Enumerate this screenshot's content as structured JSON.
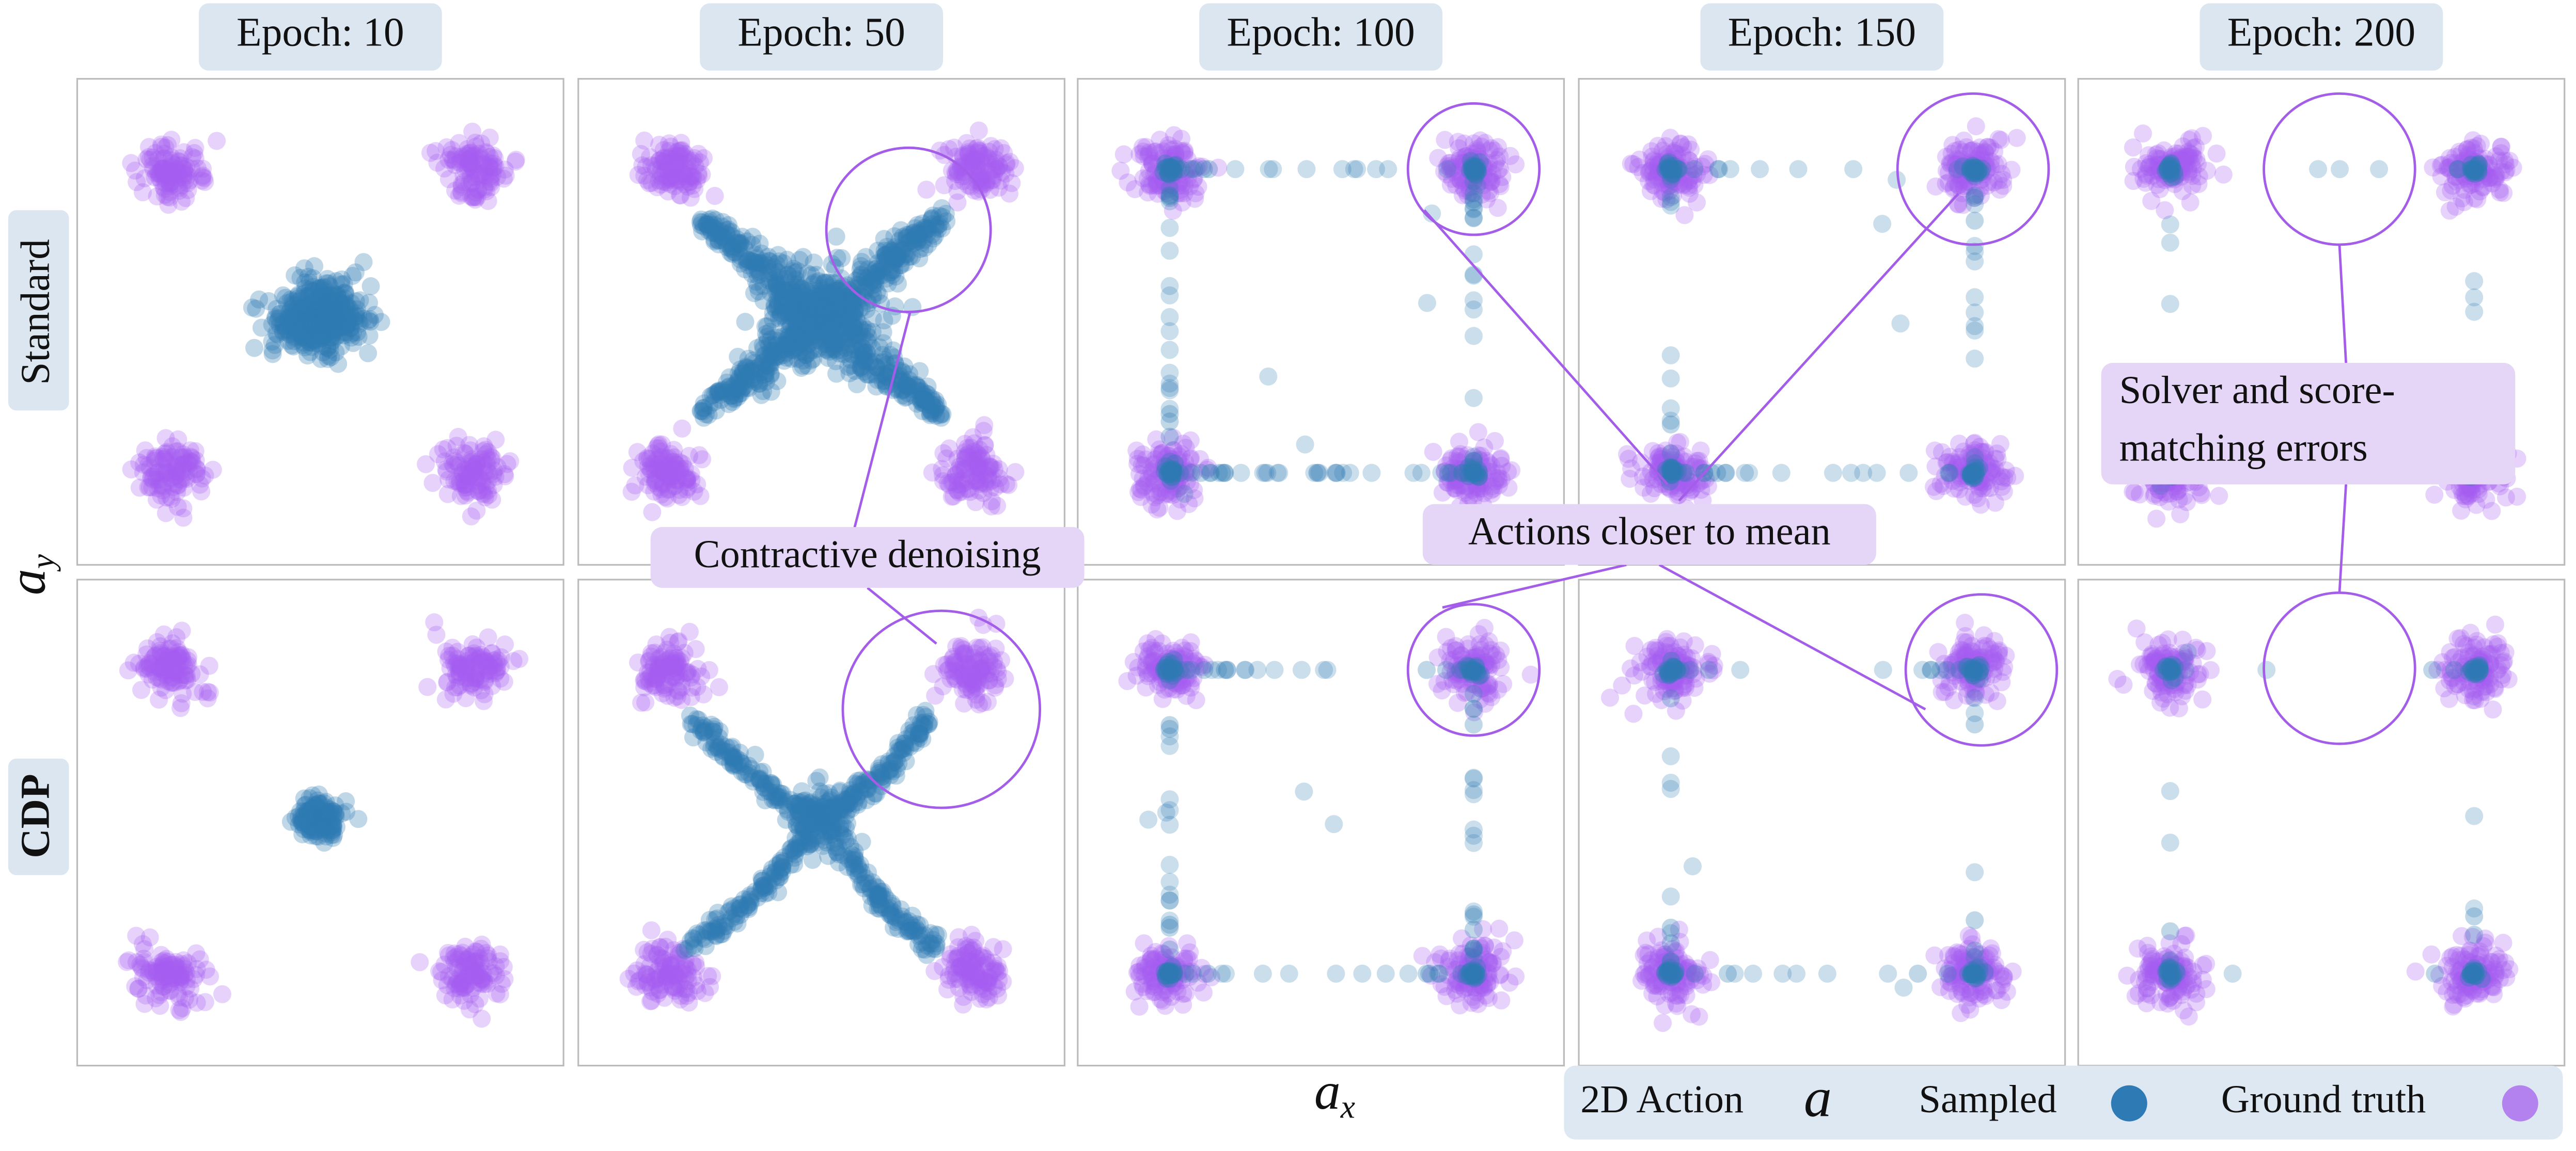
{
  "columns": [
    {
      "title": "Epoch: 10"
    },
    {
      "title": "Epoch: 50"
    },
    {
      "title": "Epoch: 100"
    },
    {
      "title": "Epoch: 150"
    },
    {
      "title": "Epoch: 200"
    }
  ],
  "rows": [
    {
      "label": "Standard"
    },
    {
      "label": "CDP"
    }
  ],
  "axes": {
    "x_label": {
      "base": "a",
      "sub": "x"
    },
    "y_label": {
      "base": "a",
      "sub": "y"
    }
  },
  "annotations": [
    {
      "lines": [
        "Contractive denoising"
      ]
    },
    {
      "lines": [
        "Actions closer to mean"
      ]
    },
    {
      "lines": [
        "Solver and score-",
        "matching errors"
      ]
    }
  ],
  "legend": {
    "title": "2D Action",
    "symbol": "a",
    "items": [
      {
        "label": "Sampled"
      },
      {
        "label": "Ground truth"
      }
    ]
  }
}
